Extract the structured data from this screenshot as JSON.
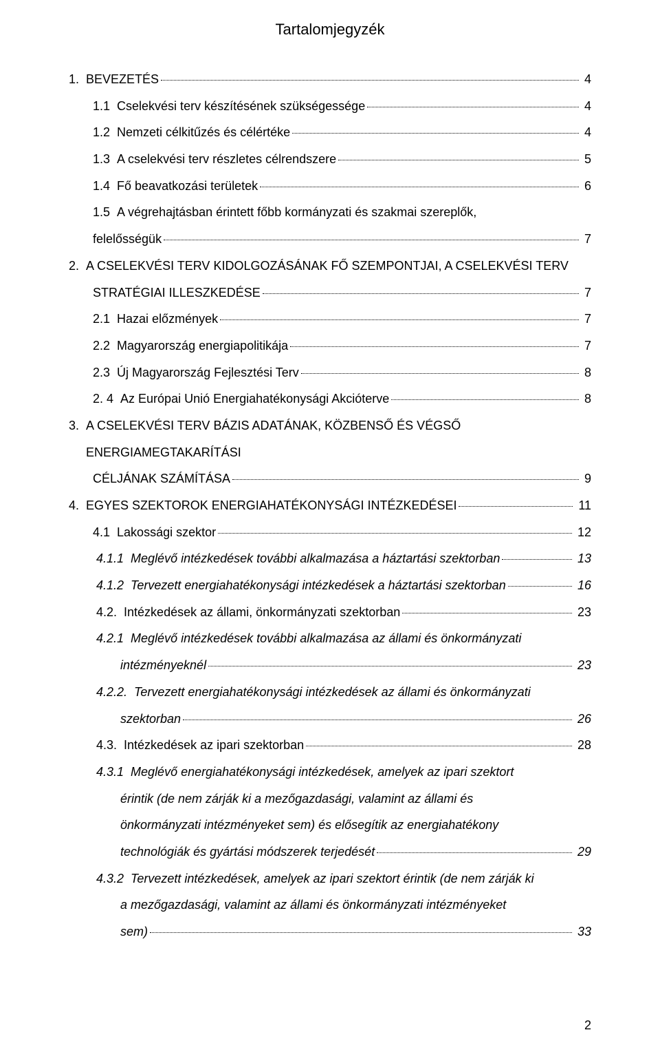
{
  "title": "Tartalomjegyzék",
  "footer_page": "2",
  "text_color": "#000000",
  "background_color": "#ffffff",
  "font_size_body": 18,
  "font_size_title": 22,
  "entries": [
    {
      "num": "1.",
      "label": "BEVEZETÉS",
      "page": "4",
      "level": "lvl-0",
      "style": "sc"
    },
    {
      "num": "1.1",
      "label": "Cselekvési terv  készítésének szükségessége",
      "page": "4",
      "level": "lvl-1"
    },
    {
      "num": "1.2",
      "label": "Nemzeti célkitűzés és célértéke",
      "page": "4",
      "level": "lvl-1"
    },
    {
      "num": "1.3",
      "label": "A cselekvési terv részletes célrendszere",
      "page": "5",
      "level": "lvl-1"
    },
    {
      "num": "1.4",
      "label": "Fő beavatkozási területek",
      "page": "6",
      "level": "lvl-1"
    },
    {
      "num": "1.5",
      "label_lines": [
        "A végrehajtásban érintett főbb kormányzati és szakmai szereplők,",
        "felelősségük"
      ],
      "page": "7",
      "level": "lvl-1",
      "cont_level": "lvl-1"
    },
    {
      "num": "2.",
      "label_lines": [
        "A CSELEKVÉSI TERV KIDOLGOZÁSÁNAK FŐ SZEMPONTJAI, A CSELEKVÉSI TERV",
        "STRATÉGIAI ILLESZKEDÉSE"
      ],
      "page": "7",
      "level": "lvl-0",
      "cont_level": "lvl-1",
      "style": "sc"
    },
    {
      "num": "2.1",
      "label": "Hazai előzmények",
      "page": "7",
      "level": "lvl-1"
    },
    {
      "num": "2.2",
      "label": "Magyarország energiapolitikája",
      "page": "7",
      "level": "lvl-1"
    },
    {
      "num": "2.3",
      "label": "Új Magyarország Fejlesztési Terv",
      "page": "8",
      "level": "lvl-1"
    },
    {
      "num": "2. 4",
      "label": "Az Európai Unió Energiahatékonysági Akcióterve",
      "page": "8",
      "level": "lvl-1"
    },
    {
      "num": "3.",
      "label_lines": [
        "A CSELEKVÉSI TERV BÁZIS ADATÁNAK, KÖZBENSŐ ÉS VÉGSŐ ENERGIAMEGTAKARÍTÁSI",
        "CÉLJÁNAK SZÁMÍTÁSA"
      ],
      "page": "9",
      "level": "lvl-0",
      "cont_level": "lvl-1",
      "style": "sc"
    },
    {
      "num": "4.",
      "label": "EGYES SZEKTOROK ENERGIAHATÉKONYSÁGI INTÉZKEDÉSEI",
      "page": "11",
      "level": "lvl-0",
      "style": "sc"
    },
    {
      "num": "4.1",
      "label": "Lakossági szektor",
      "page": "12",
      "level": "lvl-1"
    },
    {
      "num": "4.1.1",
      "label": "Meglévő intézkedések további alkalmazása a háztartási szektorban",
      "page": "13",
      "level": "lvl-2",
      "style": "italic"
    },
    {
      "num": "4.1.2",
      "label": "Tervezett energiahatékonysági intézkedések a háztartási szektorban",
      "page": "16",
      "level": "lvl-2",
      "style": "italic"
    },
    {
      "num": "4.2.",
      "label": "Intézkedések az állami, önkormányzati szektorban",
      "page": "23",
      "level": "lvl-2"
    },
    {
      "num": "4.2.1",
      "label_lines": [
        "Meglévő intézkedések további alkalmazása az állami és önkormányzati",
        "intézményeknél"
      ],
      "page": "23",
      "level": "lvl-2",
      "cont_level": "lvl-sub2",
      "style": "italic"
    },
    {
      "num": "4.2.2.",
      "label_lines": [
        "Tervezett energiahatékonysági intézkedések az állami és önkormányzati",
        "szektorban"
      ],
      "page": "26",
      "level": "lvl-2",
      "cont_level": "lvl-sub2",
      "style": "italic"
    },
    {
      "num": "4.3.",
      "label": "Intézkedések az ipari szektorban",
      "page": "28",
      "level": "lvl-2"
    },
    {
      "num": "4.3.1",
      "label_lines": [
        "Meglévő energiahatékonysági intézkedések, amelyek az ipari szektort",
        "érintik (de nem zárják ki a mezőgazdasági, valamint az állami és",
        "önkormányzati intézményeket sem) és elősegítik az energiahatékony",
        "technológiák és gyártási módszerek terjedését"
      ],
      "page": "29",
      "level": "lvl-2",
      "cont_level": "lvl-sub2",
      "style": "italic"
    },
    {
      "num": "4.3.2",
      "label_lines": [
        "Tervezett intézkedések, amelyek az ipari szektort érintik (de nem zárják ki",
        "a mezőgazdasági, valamint az állami és önkormányzati intézményeket",
        "sem)"
      ],
      "page": "33",
      "level": "lvl-2",
      "cont_level": "lvl-sub2",
      "style": "italic"
    }
  ]
}
